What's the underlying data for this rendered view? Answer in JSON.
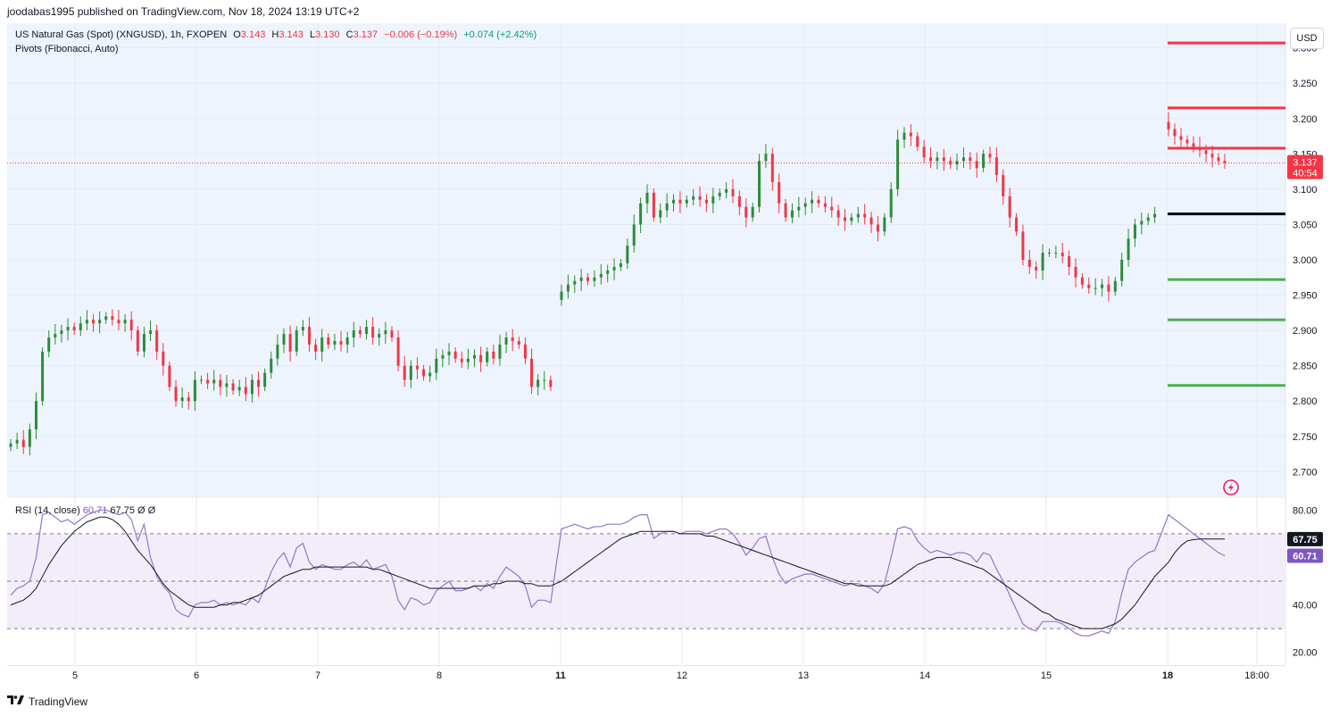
{
  "publisher_line": "joodabas1995 published on TradingView.com, Nov 18, 2024 13:19 UTC+2",
  "legend": {
    "symbol": "US Natural Gas (Spot) (XNGUSD), 1h, FXOPEN",
    "o_label": "O",
    "o_value": "3.143",
    "h_label": "H",
    "h_value": "3.143",
    "l_label": "L",
    "l_value": "3.130",
    "c_label": "C",
    "c_value": "3.137",
    "change": "−0.006 (−0.19%)",
    "change2": "+0.074 (+2.42%)",
    "pivots": "Pivots (Fibonacci, Auto)"
  },
  "rsi_legend": {
    "label": "RSI (14, close)",
    "value1": "60.71",
    "value2": "67.75",
    "extra1": "Ø",
    "extra2": "Ø"
  },
  "currency": "USD",
  "price_badge": {
    "price": "3.137",
    "countdown": "40:54"
  },
  "rsi_badges": {
    "ma": "67.75",
    "rsi": "60.71"
  },
  "brand": "TradingView",
  "colors": {
    "up": "#089981",
    "up_candle": "#2e8b3a",
    "down": "#f23645",
    "pane_bg": "#eef4fd",
    "rsi_line": "#9575cd",
    "rsi_ma": "#131722",
    "rsi_band": "#ede7f6",
    "pivot_r": "#f23645",
    "pivot_p": "#000000",
    "pivot_s": "#4caf50"
  },
  "icons": {
    "lightning": "lightning-icon",
    "logo": "tradingview-logo-icon"
  },
  "chart_data": [
    {
      "type": "candlestick",
      "title": "US Natural Gas (Spot) (XNGUSD), 1h, FXOPEN",
      "x_ticks": [
        "5",
        "6",
        "7",
        "8",
        "11",
        "12",
        "13",
        "14",
        "15",
        "18",
        "18:00"
      ],
      "y_ticks": [
        "3.300",
        "3.250",
        "3.200",
        "3.150",
        "3.100",
        "3.050",
        "3.000",
        "2.950",
        "2.900",
        "2.850",
        "2.800",
        "2.750",
        "2.700"
      ],
      "ylim": [
        2.665,
        3.335
      ],
      "last_price": 3.137,
      "pivots": {
        "R3": 3.307,
        "R2": 3.215,
        "R1": 3.158,
        "P": 3.065,
        "S1": 2.972,
        "S2": 2.915,
        "S3": 2.822
      },
      "series": [
        {
          "name": "close",
          "values": [
            2.74,
            2.745,
            2.735,
            2.76,
            2.8,
            2.87,
            2.89,
            2.895,
            2.9,
            2.905,
            2.9,
            2.91,
            2.915,
            2.91,
            2.915,
            2.92,
            2.915,
            2.91,
            2.915,
            2.9,
            2.87,
            2.895,
            2.9,
            2.87,
            2.85,
            2.82,
            2.8,
            2.805,
            2.8,
            2.83,
            2.83,
            2.825,
            2.83,
            2.82,
            2.825,
            2.815,
            2.82,
            2.81,
            2.83,
            2.82,
            2.84,
            2.86,
            2.88,
            2.895,
            2.87,
            2.9,
            2.905,
            2.88,
            2.87,
            2.89,
            2.88,
            2.885,
            2.88,
            2.89,
            2.9,
            2.895,
            2.905,
            2.89,
            2.895,
            2.9,
            2.89,
            2.85,
            2.83,
            2.85,
            2.845,
            2.835,
            2.84,
            2.86,
            2.865,
            2.87,
            2.86,
            2.855,
            2.86,
            2.865,
            2.855,
            2.87,
            2.86,
            2.88,
            2.89,
            2.885,
            2.88,
            2.86,
            2.82,
            2.83,
            2.83,
            2.82,
            2.955,
            2.965,
            2.97,
            2.975,
            2.97,
            2.975,
            2.98,
            2.985,
            2.99,
            2.995,
            3.02,
            3.05,
            3.08,
            3.095,
            3.06,
            3.07,
            3.08,
            3.085,
            3.08,
            3.085,
            3.09,
            3.085,
            3.08,
            3.09,
            3.095,
            3.1,
            3.09,
            3.075,
            3.06,
            3.075,
            3.14,
            3.15,
            3.11,
            3.08,
            3.06,
            3.07,
            3.075,
            3.08,
            3.085,
            3.08,
            3.075,
            3.07,
            3.06,
            3.055,
            3.06,
            3.065,
            3.06,
            3.05,
            3.04,
            3.06,
            3.1,
            3.17,
            3.18,
            3.175,
            3.16,
            3.145,
            3.14,
            3.145,
            3.14,
            3.135,
            3.14,
            3.145,
            3.14,
            3.13,
            3.15,
            3.145,
            3.12,
            3.09,
            3.06,
            3.04,
            3.0,
            2.99,
            2.985,
            3.01,
            3.01,
            3.01,
            3.005,
            2.99,
            2.975,
            2.965,
            2.96,
            2.96,
            2.965,
            2.955,
            2.97,
            3.0,
            3.03,
            3.05,
            3.055,
            3.06,
            3.065,
            3.185,
            3.175,
            3.17,
            3.165,
            3.16,
            3.155,
            3.15,
            3.145,
            3.14,
            3.137
          ]
        }
      ]
    },
    {
      "type": "line",
      "title": "RSI (14, close)",
      "ylim": [
        15,
        85
      ],
      "y_ticks": [
        "80.00",
        "40.00",
        "20.00"
      ],
      "bands": {
        "upper": 70,
        "middle": 50,
        "lower": 30
      },
      "series": [
        {
          "name": "RSI",
          "values": [
            44,
            47,
            48,
            50,
            60,
            78,
            79,
            77,
            75,
            76,
            74,
            76,
            78,
            79,
            80,
            80,
            79,
            78,
            79,
            76,
            67,
            74,
            60,
            52,
            48,
            45,
            38,
            36,
            35,
            40,
            41,
            41,
            42,
            40,
            41,
            40,
            41,
            40,
            43,
            41,
            47,
            54,
            59,
            62,
            56,
            64,
            66,
            58,
            55,
            57,
            56,
            55,
            55,
            57,
            58,
            56,
            59,
            55,
            56,
            57,
            52,
            42,
            38,
            43,
            42,
            40,
            41,
            46,
            48,
            50,
            46,
            46,
            47,
            48,
            46,
            49,
            47,
            52,
            56,
            54,
            52,
            48,
            39,
            42,
            42,
            41,
            72,
            73,
            74,
            73,
            72,
            73,
            73,
            74,
            74,
            74,
            75,
            77,
            78,
            78,
            68,
            70,
            71,
            71,
            70,
            71,
            71,
            71,
            70,
            71,
            72,
            72,
            70,
            66,
            61,
            64,
            68,
            69,
            60,
            53,
            49,
            51,
            52,
            53,
            53,
            52,
            51,
            50,
            49,
            48,
            49,
            49,
            48,
            47,
            45,
            49,
            60,
            72,
            73,
            72,
            67,
            64,
            62,
            63,
            62,
            61,
            62,
            62,
            61,
            58,
            62,
            61,
            55,
            50,
            44,
            38,
            32,
            30,
            29,
            33,
            33,
            33,
            32,
            30,
            28,
            27,
            27,
            28,
            29,
            28,
            33,
            45,
            55,
            58,
            60,
            62,
            63,
            78,
            76,
            74,
            72,
            70,
            68,
            66,
            64,
            62,
            60.71
          ]
        },
        {
          "name": "RSI-based MA",
          "values": [
            40,
            41,
            42,
            44,
            47,
            52,
            57,
            61,
            65,
            68,
            71,
            73,
            75,
            76,
            77,
            77,
            76,
            74,
            71,
            67,
            63,
            60,
            57,
            53,
            49,
            46,
            44,
            42,
            40,
            39,
            39,
            39,
            39,
            40,
            40,
            41,
            41,
            42,
            43,
            44,
            46,
            48,
            50,
            52,
            53,
            54,
            55,
            55,
            56,
            56,
            56,
            56,
            56,
            56,
            56,
            56,
            56,
            55,
            55,
            54,
            53,
            52,
            51,
            50,
            49,
            48,
            47,
            47,
            47,
            47,
            47,
            47,
            47,
            48,
            48,
            48,
            49,
            49,
            50,
            50,
            50,
            49,
            49,
            48,
            48,
            48,
            50,
            52,
            54,
            56,
            58,
            60,
            62,
            64,
            66,
            68,
            69,
            70,
            71,
            71,
            71,
            71,
            71,
            71,
            70,
            70,
            70,
            70,
            69,
            69,
            68,
            67,
            66,
            65,
            64,
            63,
            62,
            61,
            60,
            59,
            58,
            57,
            56,
            55,
            54,
            53,
            52,
            51,
            50,
            49,
            49,
            48,
            48,
            48,
            48,
            48,
            49,
            51,
            53,
            55,
            57,
            58,
            59,
            60,
            60,
            60,
            59,
            58,
            57,
            56,
            55,
            53,
            51,
            49,
            47,
            45,
            43,
            41,
            39,
            37,
            36,
            34,
            33,
            32,
            31,
            30,
            30,
            30,
            30,
            31,
            32,
            34,
            37,
            40,
            44,
            48,
            52,
            58,
            62,
            65,
            67,
            67.5,
            67.75,
            67.75,
            67.75,
            67.75,
            67.75
          ]
        }
      ]
    }
  ]
}
